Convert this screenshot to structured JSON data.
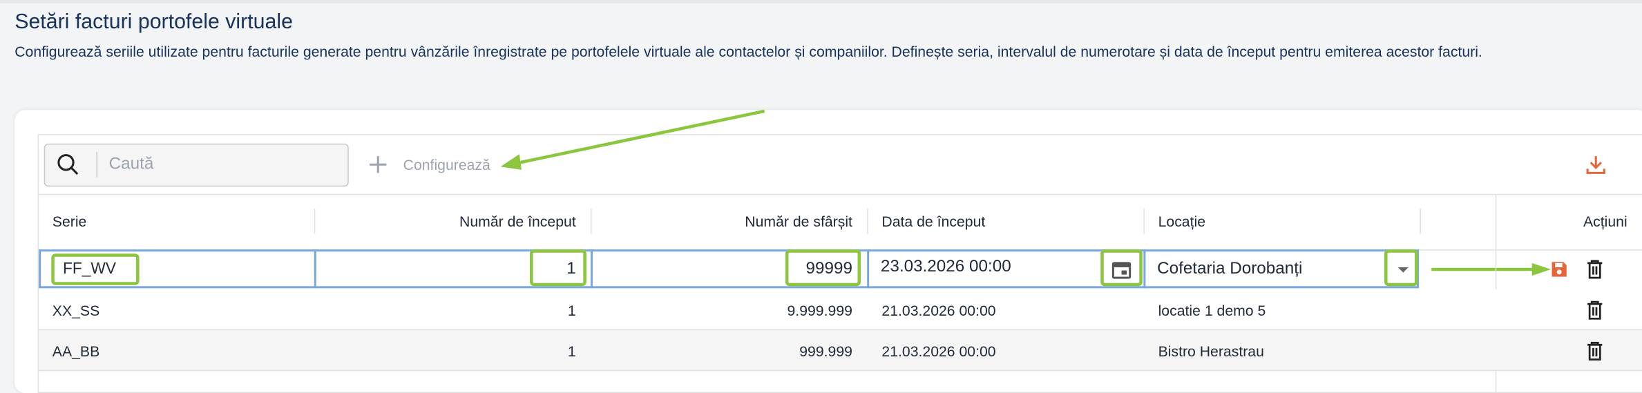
{
  "header": {
    "title": "Setări facturi portofele virtuale",
    "description": "Configurează seriile utilizate pentru facturile generate pentru vânzările înregistrate pe portofelele virtuale ale contactelor și companiilor. Definește seria, intervalul de numerotare și data de început pentru emiterea acestor facturi."
  },
  "toolbar": {
    "search_placeholder": "Caută",
    "configure": "Configurează"
  },
  "table": {
    "columns": [
      "Serie",
      "Număr de început",
      "Număr de sfârșit",
      "Data de început",
      "Locație",
      "Acțiuni"
    ],
    "edit_row": [
      "FF_WV",
      "1",
      "99999",
      "23.03.2026 00:00",
      "Cofetaria Dorobanți"
    ],
    "rows": [
      [
        "XX_SS",
        "1",
        "9.999.999",
        "21.03.2026 00:00",
        "locatie 1 demo 5"
      ],
      [
        "AA_BB",
        "1",
        "999.999",
        "21.03.2026 00:00",
        "Bistro Herastrau"
      ]
    ]
  }
}
